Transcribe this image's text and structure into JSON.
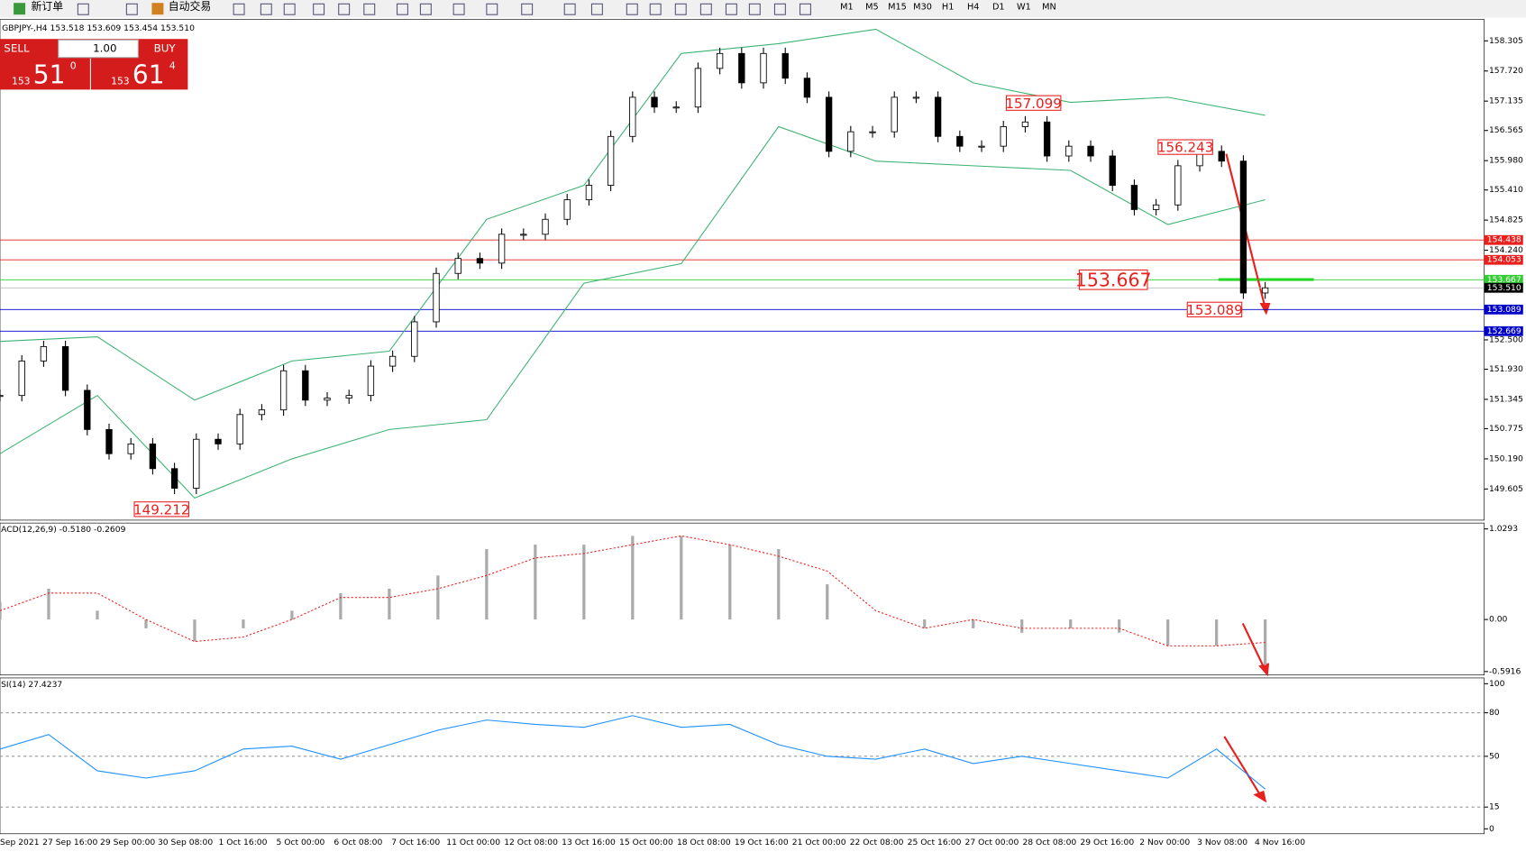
{
  "toolbar": {
    "new_order": "新订单",
    "auto_trading": "自动交易",
    "timeframes": [
      "M1",
      "M5",
      "M15",
      "M30",
      "H1",
      "H4",
      "D1",
      "W1",
      "MN"
    ]
  },
  "trade_panel": {
    "sell": "SELL",
    "lot": "1.00",
    "buy": "BUY",
    "sell_big": "153",
    "sell_pips": "51",
    "sell_frac": "0",
    "buy_big": "153",
    "buy_pips": "61",
    "buy_frac": "4"
  },
  "chart_data": [
    {
      "type": "candlestick",
      "title": "GBPJPY-,H4 153.518 153.609 153.454 153.510",
      "closes": [
        151.42,
        152.09,
        152.37,
        151.52,
        150.76,
        150.29,
        150.48,
        150.0,
        149.62,
        150.57,
        150.48,
        151.05,
        151.14,
        151.9,
        151.33,
        151.37,
        151.42,
        151.99,
        152.18,
        152.85,
        153.79,
        154.08,
        153.99,
        154.55,
        154.55,
        154.84,
        155.22,
        155.5,
        156.45,
        157.21,
        157.02,
        157.02,
        157.77,
        158.06,
        157.49,
        158.06,
        157.58,
        157.21,
        156.16,
        156.54,
        156.54,
        157.21,
        157.21,
        156.45,
        156.26,
        156.26,
        156.64,
        156.73,
        156.07,
        156.26,
        156.07,
        155.5,
        155.03,
        155.12,
        155.88,
        156.16,
        155.97,
        153.41,
        153.51
      ],
      "bands": [
        {
          "name": "upper",
          "color": "#3cb371",
          "values": [
            152.47,
            152.56,
            151.33,
            152.09,
            152.28,
            154.84,
            155.5,
            158.06,
            158.25,
            158.53,
            157.49,
            157.11,
            157.21,
            156.86
          ]
        },
        {
          "name": "lower",
          "color": "#3cb371",
          "values": [
            150.29,
            151.42,
            149.43,
            150.19,
            150.76,
            150.95,
            153.6,
            153.98,
            156.64,
            155.97,
            155.88,
            155.79,
            154.74,
            155.22
          ]
        }
      ],
      "ylim": [
        149.0,
        158.72
      ],
      "yticks": [
        158.305,
        {
          "value": 157.72,
          "label": "157.720"
        },
        157.135,
        156.565,
        {
          "value": 155.98,
          "label": "155.980"
        },
        {
          "value": 155.41,
          "label": "155.410"
        },
        154.825,
        {
          "value": 154.24,
          "label": "154.240"
        },
        {
          "value": 152.5,
          "label": "152.500"
        },
        {
          "value": 151.93,
          "label": "151.930"
        },
        151.345,
        150.775,
        {
          "value": 150.19,
          "label": "150.190"
        },
        149.605
      ],
      "levels": [
        {
          "value": 154.438,
          "color": "#e8201e"
        },
        {
          "value": 154.053,
          "color": "#e8201e"
        },
        {
          "value": 153.667,
          "color": "#32cd32"
        },
        {
          "value": {
            "value": 153.51,
            "label": "153.510"
          },
          "color": "#000000"
        },
        {
          "value": 153.089,
          "color": "#0000c8"
        },
        {
          "value": 152.669,
          "color": "#0000c8"
        }
      ],
      "annotations": [
        157.099,
        156.243,
        153.667,
        153.089,
        149.212
      ]
    },
    {
      "type": "macd",
      "title": "ACD(12,26,9) -0.5180 -0.2609",
      "histogram": [
        0.2,
        0.35,
        0.1,
        -0.1,
        -0.25,
        -0.1,
        0.1,
        0.3,
        0.35,
        0.5,
        0.8,
        0.85,
        0.85,
        0.95,
        0.95,
        0.85,
        0.8,
        0.4,
        0.0,
        -0.1,
        -0.1,
        -0.15,
        -0.1,
        -0.15,
        -0.3,
        -0.3,
        -0.518
      ],
      "signal": [
        0.1,
        0.3,
        0.3,
        0.0,
        -0.25,
        -0.2,
        0.0,
        0.25,
        0.25,
        0.35,
        0.5,
        0.7,
        0.75,
        0.85,
        0.95,
        0.85,
        0.72,
        0.55,
        0.1,
        -0.1,
        0.0,
        -0.1,
        -0.1,
        -0.1,
        -0.3,
        -0.3,
        -0.2609
      ],
      "ylim": [
        -0.631,
        1.096
      ],
      "yticks": [
        1.0293,
        {
          "value": 0,
          "label": "0.00"
        },
        -0.5916
      ]
    },
    {
      "type": "rsi",
      "title": "SI(14) 27.4237",
      "values": [
        55,
        65,
        40,
        35,
        40,
        55,
        57,
        48,
        58,
        68,
        75,
        72,
        70,
        78,
        70,
        72,
        58,
        50,
        48,
        55,
        45,
        50,
        45,
        40,
        35,
        55,
        27.4237
      ],
      "ylim": [
        -3.4,
        104
      ],
      "yticks": [
        100,
        80,
        50,
        15,
        0
      ],
      "levels": [
        80,
        50,
        15
      ]
    }
  ],
  "time_axis": [
    "Sep 2021",
    "27 Sep 16:00",
    "29 Sep 00:00",
    "30 Sep 08:00",
    "1 Oct 16:00",
    "5 Oct 00:00",
    "6 Oct 08:00",
    "7 Oct 16:00",
    "11 Oct 00:00",
    "12 Oct 08:00",
    "13 Oct 16:00",
    "15 Oct 00:00",
    "18 Oct 08:00",
    "19 Oct 16:00",
    "21 Oct 00:00",
    "22 Oct 08:00",
    "25 Oct 16:00",
    "27 Oct 00:00",
    "28 Oct 08:00",
    "29 Oct 16:00",
    "2 Nov 00:00",
    "3 Nov 08:00",
    "4 Nov 16:00"
  ]
}
